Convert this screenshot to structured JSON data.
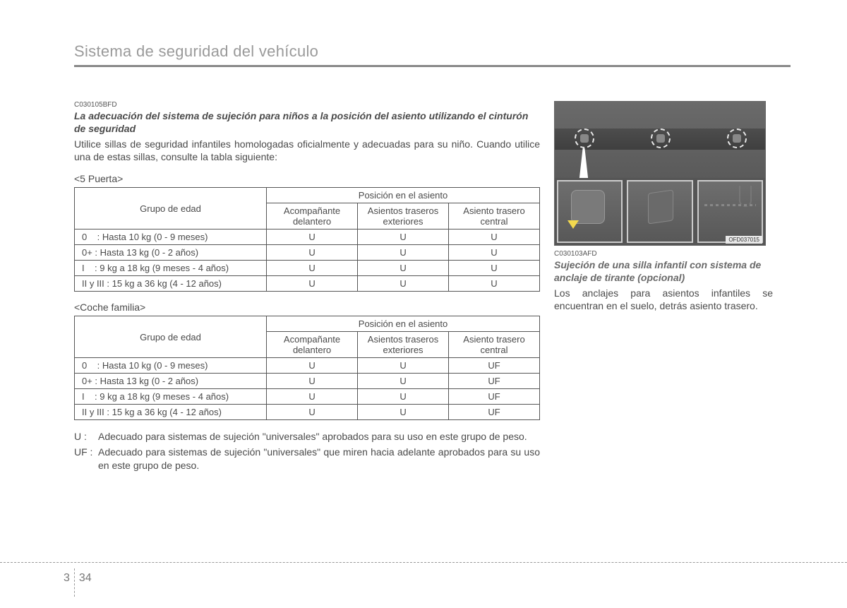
{
  "pageTitle": "Sistema de seguridad del vehículo",
  "section": {
    "code": "C030105BFD",
    "heading": "La adecuación del sistema de sujeción para niños a la posición del asiento utilizando el cinturón de seguridad",
    "intro": "Utilice sillas de seguridad infantiles homologadas oficialmente y adecuadas para su niño. Cuando utilice una de estas sillas, consulte la tabla siguiente:"
  },
  "tables": [
    {
      "label": "<5 Puerta>",
      "header": {
        "group": "Grupo de edad",
        "posHeader": "Posición en el asiento",
        "cols": [
          "Acompañante delantero",
          "Asientos traseros exteriores",
          "Asiento trasero central"
        ]
      },
      "rows": [
        {
          "label": "0    : Hasta 10 kg (0 - 9 meses)",
          "vals": [
            "U",
            "U",
            "U"
          ]
        },
        {
          "label": "0+ : Hasta 13 kg (0 - 2 años)",
          "vals": [
            "U",
            "U",
            "U"
          ]
        },
        {
          "label": "I    : 9 kg a 18 kg (9 meses - 4 años)",
          "vals": [
            "U",
            "U",
            "U"
          ]
        },
        {
          "label": "II y III : 15 kg a 36 kg (4 - 12 años)",
          "vals": [
            "U",
            "U",
            "U"
          ]
        }
      ]
    },
    {
      "label": "<Coche familia>",
      "header": {
        "group": "Grupo de edad",
        "posHeader": "Posición en el asiento",
        "cols": [
          "Acompañante delantero",
          "Asientos traseros exteriores",
          "Asiento trasero central"
        ]
      },
      "rows": [
        {
          "label": "0    : Hasta 10 kg (0 - 9 meses)",
          "vals": [
            "U",
            "U",
            "UF"
          ]
        },
        {
          "label": "0+ : Hasta 13 kg (0 - 2 años)",
          "vals": [
            "U",
            "U",
            "UF"
          ]
        },
        {
          "label": "I    : 9 kg a 18 kg (9 meses - 4 años)",
          "vals": [
            "U",
            "U",
            "UF"
          ]
        },
        {
          "label": "II y III : 15 kg a 36 kg (4 - 12 años)",
          "vals": [
            "U",
            "U",
            "UF"
          ]
        }
      ]
    }
  ],
  "legend": [
    {
      "key": "U :",
      "text": "Adecuado para sistemas de sujeción \"universales\" aprobados para su uso en este grupo de peso."
    },
    {
      "key": "UF :",
      "text": "Adecuado para sistemas de sujeción \"universales\" que miren hacia adelante aprobados para su uso en este grupo de peso."
    }
  ],
  "figure": {
    "code": "OFD037015"
  },
  "rightSection": {
    "code": "C030103AFD",
    "heading": "Sujeción de una silla infantil con sistema de anclaje de tirante (opcional)",
    "body": "Los anclajes para asientos infantiles se encuentran en el suelo, detrás asiento trasero."
  },
  "pageNumber": {
    "chapter": "3",
    "page": "34"
  }
}
